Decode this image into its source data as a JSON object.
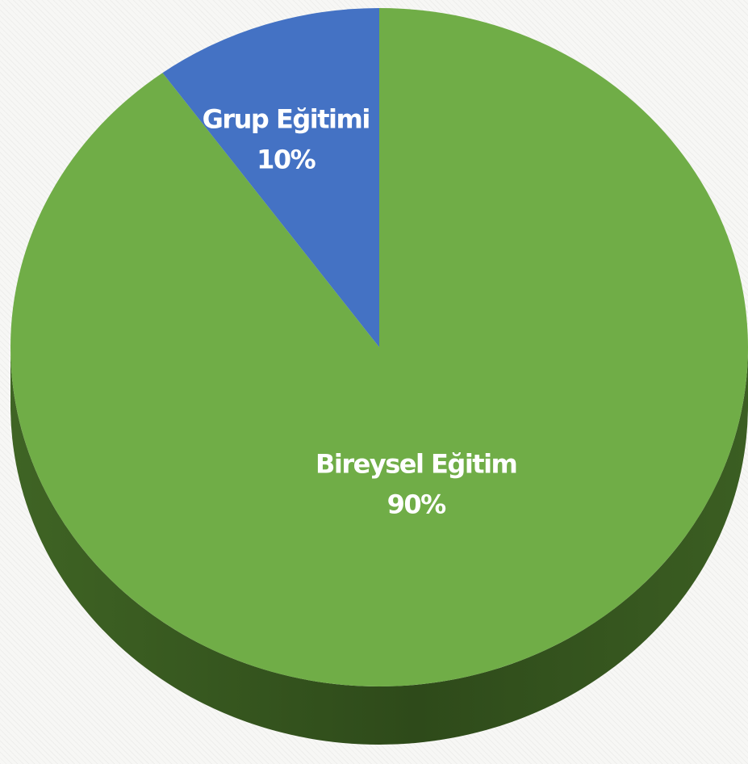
{
  "chart_data": {
    "type": "pie",
    "style": "3d",
    "title": "",
    "slices": [
      {
        "label": "Grup Eğitimi",
        "value": 10,
        "value_label": "10%",
        "color": "#4472c4"
      },
      {
        "label": "Bireysel Eğitim",
        "value": 90,
        "value_label": "90%",
        "color": "#70ad47"
      }
    ],
    "side_color": "#3b5e22",
    "legend": "none"
  }
}
